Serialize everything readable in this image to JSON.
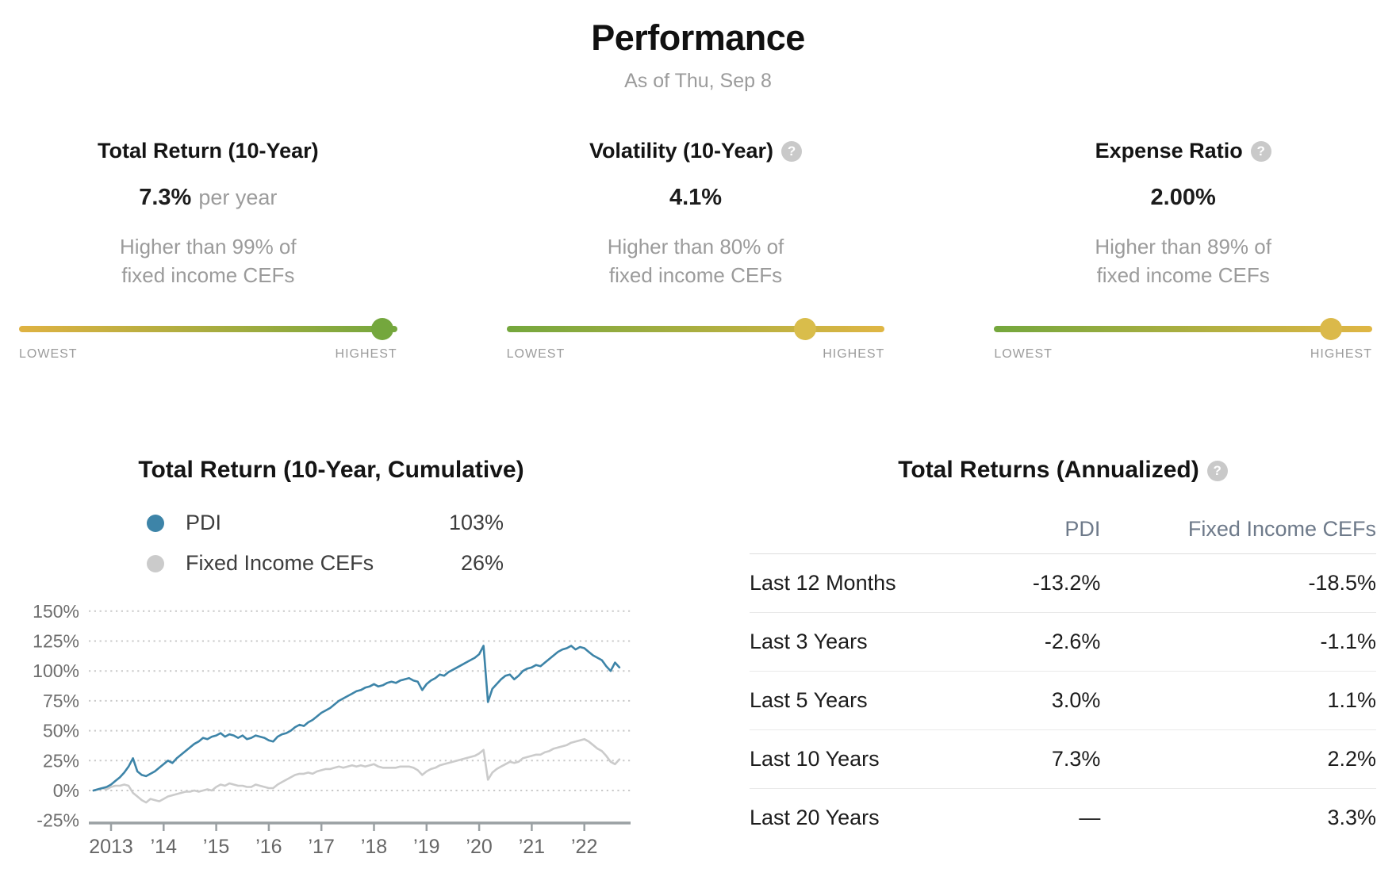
{
  "page": {
    "title": "Performance",
    "as_of": "As of Thu, Sep 8"
  },
  "metrics": {
    "lowest_label": "LOWEST",
    "highest_label": "HIGHEST",
    "cards": [
      {
        "title": "Total Return (10-Year)",
        "value": "7.3%",
        "value_suffix": "per year",
        "desc_line1": "Higher than 99% of",
        "desc_line2": "fixed income CEFs",
        "slider": {
          "position_pct": 96,
          "from": "#dfb242",
          "to": "#74a73d",
          "dot": "#74a73d"
        }
      },
      {
        "title": "Volatility (10-Year)",
        "value": "4.1%",
        "value_suffix": "",
        "desc_line1": "Higher than 80% of",
        "desc_line2": "fixed income CEFs",
        "slider": {
          "position_pct": 79,
          "from": "#74a73d",
          "to": "#e0b644",
          "dot": "#d9bd4b"
        }
      },
      {
        "title": "Expense Ratio",
        "value": "2.00%",
        "value_suffix": "",
        "desc_line1": "Higher than 89% of",
        "desc_line2": "fixed income CEFs",
        "slider": {
          "position_pct": 89,
          "from": "#74a73d",
          "to": "#e0b644",
          "dot": "#dbb94a"
        }
      }
    ]
  },
  "chart_data": {
    "type": "line",
    "title": "Total Return (10-Year, Cumulative)",
    "unit": "%",
    "start_year": 2012,
    "start_month": 9,
    "frequency": "monthly",
    "ylim": [
      -25,
      150
    ],
    "yticks": [
      150,
      125,
      100,
      75,
      50,
      25,
      0,
      -25
    ],
    "ytick_labels": [
      "150%",
      "125%",
      "100%",
      "75%",
      "50%",
      "25%",
      "0%",
      "-25%"
    ],
    "x_years": [
      2013,
      2014,
      2015,
      2016,
      2017,
      2018,
      2019,
      2020,
      2021,
      2022
    ],
    "xtick_labels": [
      "2013",
      "’14",
      "’15",
      "’16",
      "’17",
      "’18",
      "’19",
      "’20",
      "’21",
      "’22"
    ],
    "grid": "dotted-horizontal",
    "legend_position": "top-left",
    "series": [
      {
        "name": "PDI",
        "color": "#3d84a8",
        "total_label": "103%",
        "values": [
          0,
          1,
          2,
          3,
          5,
          8,
          11,
          15,
          20,
          27,
          16,
          13,
          12,
          14,
          16,
          19,
          22,
          25,
          23,
          27,
          30,
          33,
          36,
          39,
          41,
          44,
          43,
          45,
          46,
          48,
          45,
          47,
          46,
          44,
          46,
          43,
          44,
          46,
          45,
          44,
          42,
          41,
          45,
          47,
          48,
          50,
          53,
          55,
          54,
          57,
          59,
          62,
          65,
          67,
          69,
          72,
          75,
          77,
          79,
          81,
          83,
          84,
          86,
          87,
          89,
          87,
          88,
          90,
          91,
          90,
          92,
          93,
          94,
          92,
          91,
          84,
          89,
          92,
          94,
          97,
          96,
          99,
          101,
          103,
          105,
          107,
          109,
          111,
          114,
          121,
          74,
          85,
          89,
          93,
          96,
          97,
          93,
          96,
          100,
          102,
          103,
          105,
          104,
          107,
          110,
          113,
          116,
          118,
          119,
          121,
          118,
          120,
          119,
          116,
          113,
          111,
          109,
          104,
          100,
          107,
          103
        ]
      },
      {
        "name": "Fixed Income CEFs",
        "color": "#cbcbcb",
        "total_label": "26%",
        "values": [
          0,
          1,
          2,
          1,
          3,
          4,
          4,
          5,
          4,
          -2,
          -5,
          -8,
          -10,
          -7,
          -8,
          -9,
          -7,
          -5,
          -4,
          -3,
          -2,
          -1,
          -1,
          0,
          -1,
          0,
          1,
          0,
          3,
          5,
          4,
          6,
          5,
          4,
          4,
          3,
          3,
          5,
          4,
          3,
          2,
          2,
          5,
          7,
          9,
          11,
          13,
          14,
          14,
          15,
          14,
          16,
          17,
          18,
          18,
          19,
          20,
          19,
          20,
          21,
          20,
          21,
          20,
          21,
          22,
          20,
          19,
          19,
          19,
          19,
          20,
          20,
          20,
          19,
          17,
          13,
          16,
          18,
          19,
          21,
          22,
          23,
          24,
          25,
          26,
          27,
          28,
          29,
          31,
          34,
          9,
          15,
          18,
          20,
          22,
          24,
          23,
          24,
          27,
          28,
          29,
          30,
          30,
          32,
          33,
          35,
          36,
          37,
          38,
          40,
          41,
          42,
          43,
          41,
          38,
          35,
          33,
          29,
          24,
          22,
          26
        ]
      }
    ]
  },
  "table": {
    "title": "Total Returns (Annualized)",
    "columns": {
      "pdi": "PDI",
      "cefs": "Fixed Income CEFs"
    },
    "rows": [
      {
        "label": "Last 12 Months",
        "pdi": "-13.2%",
        "cefs": "-18.5%"
      },
      {
        "label": "Last 3 Years",
        "pdi": "-2.6%",
        "cefs": "-1.1%"
      },
      {
        "label": "Last 5 Years",
        "pdi": "3.0%",
        "cefs": "1.1%"
      },
      {
        "label": "Last 10 Years",
        "pdi": "7.3%",
        "cefs": "2.2%"
      },
      {
        "label": "Last 20 Years",
        "pdi": "—",
        "cefs": "3.3%"
      }
    ]
  }
}
